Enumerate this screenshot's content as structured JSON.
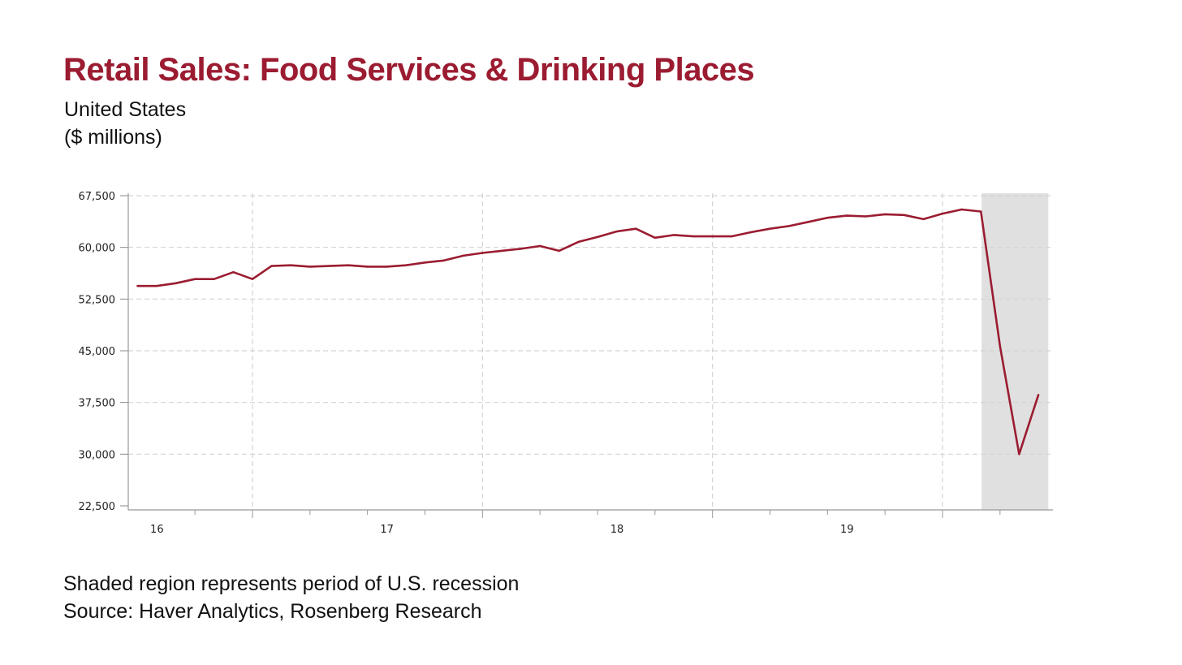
{
  "title": "Retail Sales: Food Services & Drinking Places",
  "subtitle_line1": "United States",
  "subtitle_line2": "($ millions)",
  "footnote_line1": "Shaded region represents period of U.S. recession",
  "footnote_line2": "Source: Haver Analytics, Rosenberg Research",
  "colors": {
    "title": "#9b1c31",
    "line": "#9b1c31",
    "recession_shade": "#e0e0e0",
    "grid": "#d4d4d4"
  },
  "chart_data": {
    "type": "line",
    "title": "Retail Sales: Food Services & Drinking Places",
    "x_unit": "year-fraction",
    "xlim": [
      2015.96,
      2019.98
    ],
    "ylim": [
      22500,
      67500
    ],
    "y_ticks": [
      22500,
      30000,
      37500,
      45000,
      52500,
      60000,
      67500
    ],
    "y_tick_labels": [
      "22,500",
      "30,000",
      "37,500",
      "45,000",
      "52,500",
      "60,000",
      "67,500"
    ],
    "x_ticks": [
      2016,
      2017,
      2018,
      2019
    ],
    "x_tick_labels": [
      "16",
      "17",
      "18",
      "19"
    ],
    "vertical_gridlines": [
      2016.5,
      2017.5,
      2018.5,
      2019.5
    ],
    "grid": true,
    "recession_shading": [
      2019.67,
      2019.96
    ],
    "series": [
      {
        "x": [
          2016.0,
          2016.083,
          2016.167,
          2016.25,
          2016.333,
          2016.417,
          2016.5,
          2016.583,
          2016.667,
          2016.75,
          2016.833,
          2016.917,
          2017.0,
          2017.083,
          2017.167,
          2017.25,
          2017.333,
          2017.417,
          2017.5,
          2017.583,
          2017.667,
          2017.75,
          2017.833,
          2017.917,
          2018.0,
          2018.083,
          2018.167,
          2018.25,
          2018.333,
          2018.417,
          2018.5,
          2018.583,
          2018.667,
          2018.75,
          2018.833,
          2018.917,
          2019.0,
          2019.083,
          2019.167,
          2019.25,
          2019.333,
          2019.417,
          2019.5,
          2019.583,
          2019.667,
          2019.75,
          2019.833,
          2019.917
        ],
        "y": [
          54400,
          54400,
          54800,
          55400,
          55400,
          56400,
          55400,
          57300,
          57400,
          57200,
          57300,
          57400,
          57200,
          57200,
          57400,
          57800,
          58100,
          58800,
          59200,
          59500,
          59800,
          60200,
          59500,
          60800,
          61500,
          62300,
          62700,
          61400,
          61800,
          61600,
          61600,
          61600,
          62200,
          62700,
          63100,
          63700,
          64300,
          64600,
          64500,
          64800,
          64700,
          64100,
          64900,
          65500,
          65200,
          45700,
          30000,
          38600
        ]
      }
    ]
  }
}
